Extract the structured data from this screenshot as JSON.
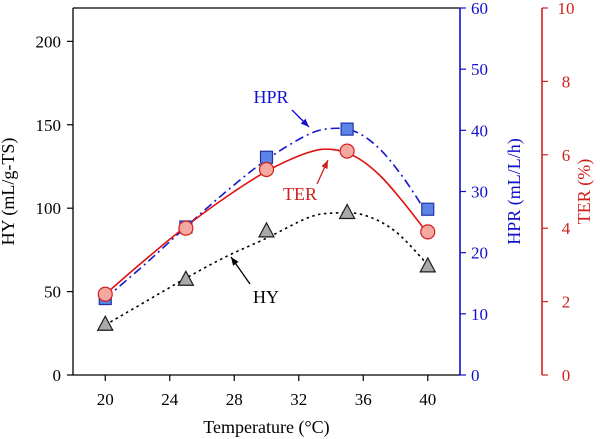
{
  "chart_data": {
    "type": "line",
    "x": [
      20,
      25,
      30,
      35,
      40
    ],
    "xlabel": "Temperature (°C)",
    "xlim": [
      18,
      42
    ],
    "xticks": [
      20,
      24,
      28,
      32,
      36,
      40
    ],
    "axes": {
      "HY": {
        "label": "HY (mL/g-TS)",
        "lim": [
          0,
          220
        ],
        "ticks": [
          0,
          50,
          100,
          150,
          200
        ],
        "color": "#000000",
        "side": "left"
      },
      "HPR": {
        "label": "HPR (mL/L/h)",
        "lim": [
          0,
          60
        ],
        "ticks": [
          0,
          10,
          20,
          30,
          40,
          50,
          60
        ],
        "color": "#1010cc",
        "side": "right"
      },
      "TER": {
        "label": "TER (%)",
        "lim": [
          0,
          10
        ],
        "ticks": [
          0,
          2,
          4,
          6,
          8,
          10
        ],
        "color": "#d0201c",
        "side": "right-outer"
      }
    },
    "series": [
      {
        "name": "HY",
        "axis": "HY",
        "marker": "triangle",
        "fill": "#a9a9a9",
        "stroke": "#1a1a1a",
        "line": "dotted",
        "lineColor": "#000000",
        "values": [
          30,
          57,
          86,
          97,
          65
        ],
        "fit": [
          [
            20,
            30
          ],
          [
            22.5,
            44
          ],
          [
            25,
            58
          ],
          [
            27.5,
            71
          ],
          [
            30,
            82
          ],
          [
            32.5,
            94
          ],
          [
            34,
            97
          ],
          [
            36,
            96
          ],
          [
            38,
            86
          ],
          [
            40,
            66
          ]
        ]
      },
      {
        "name": "HPR",
        "axis": "HPR",
        "marker": "square",
        "fill": "#5b84e6",
        "stroke": "#2233aa",
        "line": "dashdot",
        "lineColor": "#1515d0",
        "values": [
          12.5,
          24.2,
          35.6,
          40.2,
          27.1
        ],
        "fit": [
          [
            20,
            12.5
          ],
          [
            22.5,
            18.2
          ],
          [
            25,
            24.2
          ],
          [
            27.5,
            30.0
          ],
          [
            30,
            35.2
          ],
          [
            32.5,
            39.2
          ],
          [
            34,
            40.3
          ],
          [
            35.5,
            39.8
          ],
          [
            37,
            37.0
          ],
          [
            38.5,
            32.2
          ],
          [
            40,
            26.2
          ]
        ]
      },
      {
        "name": "TER",
        "axis": "TER",
        "marker": "circle",
        "fill": "#f4a8a0",
        "stroke": "#d0201c",
        "line": "solid",
        "lineColor": "#e01010",
        "values": [
          2.2,
          4.0,
          5.6,
          6.1,
          3.9
        ],
        "fit": [
          [
            20,
            2.2
          ],
          [
            22.5,
            3.15
          ],
          [
            25,
            4.05
          ],
          [
            27.5,
            4.85
          ],
          [
            30,
            5.55
          ],
          [
            32.5,
            6.05
          ],
          [
            34,
            6.15
          ],
          [
            35.5,
            5.95
          ],
          [
            37,
            5.45
          ],
          [
            38.5,
            4.7
          ],
          [
            40,
            3.85
          ]
        ]
      }
    ],
    "annotations": [
      {
        "text": "HPR",
        "color": "#1010cc",
        "arrowColor": "#1010cc",
        "for": "HPR"
      },
      {
        "text": "TER",
        "color": "#d0201c",
        "arrowColor": "#d0201c",
        "for": "TER"
      },
      {
        "text": "HY",
        "color": "#000000",
        "arrowColor": "#000000",
        "for": "HY"
      }
    ]
  }
}
